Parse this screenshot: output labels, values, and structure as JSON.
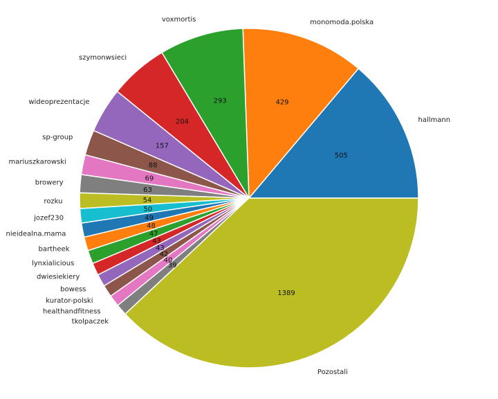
{
  "chart_data": {
    "type": "pie",
    "title": "",
    "start_angle_deg": 0,
    "direction": "counterclockwise",
    "explode": {
      "index": 19,
      "fraction": 0.01
    },
    "slices": [
      {
        "label": "hallmann",
        "value": 505,
        "color": "#1f77b4"
      },
      {
        "label": "monomoda.polska",
        "value": 429,
        "color": "#ff7f0e"
      },
      {
        "label": "voxmortis",
        "value": 293,
        "color": "#2ca02c"
      },
      {
        "label": "szymonwsieci",
        "value": 204,
        "color": "#d62728"
      },
      {
        "label": "wideoprezentacje",
        "value": 157,
        "color": "#9467bd"
      },
      {
        "label": "sp-group",
        "value": 88,
        "color": "#8c564b"
      },
      {
        "label": "mariuszkarowski",
        "value": 69,
        "color": "#e377c2"
      },
      {
        "label": "browery",
        "value": 63,
        "color": "#7f7f7f"
      },
      {
        "label": "rozku",
        "value": 54,
        "color": "#bcbd22"
      },
      {
        "label": "jozef230",
        "value": 50,
        "color": "#17becf"
      },
      {
        "label": "nieidealna.mama",
        "value": 49,
        "color": "#1f77b4"
      },
      {
        "label": "bartheek",
        "value": 48,
        "color": "#ff7f0e"
      },
      {
        "label": "lynxialicious",
        "value": 47,
        "color": "#2ca02c"
      },
      {
        "label": "dwiesiekiery",
        "value": 43,
        "color": "#d62728"
      },
      {
        "label": "bowess",
        "value": 43,
        "color": "#9467bd"
      },
      {
        "label": "kurator-polski",
        "value": 42,
        "color": "#8c564b"
      },
      {
        "label": "healthandfitness",
        "value": 40,
        "color": "#e377c2"
      },
      {
        "label": "tkolpaczek",
        "value": 39,
        "color": "#7f7f7f"
      },
      {
        "label": "Pozostali",
        "value": 1389,
        "color": "#bcbd22"
      }
    ]
  }
}
